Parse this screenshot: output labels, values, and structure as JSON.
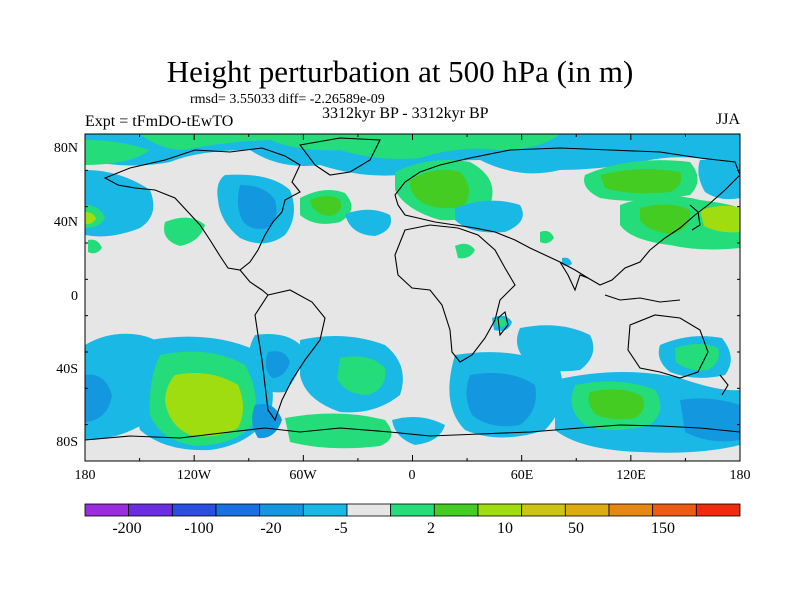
{
  "title": "Height perturbation at 500 hPa (in m)",
  "stats_text": "rmsd= 3.55033 diff= -2.26589e-09",
  "left_label": "Expt = tFmDO-tEwTO",
  "center_label": "3312kyr BP - 3312kyr BP",
  "right_label": "JJA",
  "lat_ticks": [
    "80N",
    "40N",
    "0",
    "40S",
    "80S"
  ],
  "lon_ticks": [
    "180",
    "120W",
    "60W",
    "0",
    "60E",
    "120E",
    "180"
  ],
  "colorbar": {
    "labels": [
      "-200",
      "-100",
      "-20",
      "-5",
      "2",
      "10",
      "50",
      "150"
    ],
    "colors": [
      "#9a2ddd",
      "#6a2ee0",
      "#2a4ee0",
      "#1a70e0",
      "#1398e0",
      "#1ab8e4",
      "#e6e6e6",
      "#24dd7a",
      "#44cc22",
      "#a0dd10",
      "#ccc414",
      "#dcac10",
      "#e48814",
      "#ec5a14",
      "#ee2c10"
    ]
  },
  "map": {
    "ocean_color": "#e6e6e6"
  }
}
